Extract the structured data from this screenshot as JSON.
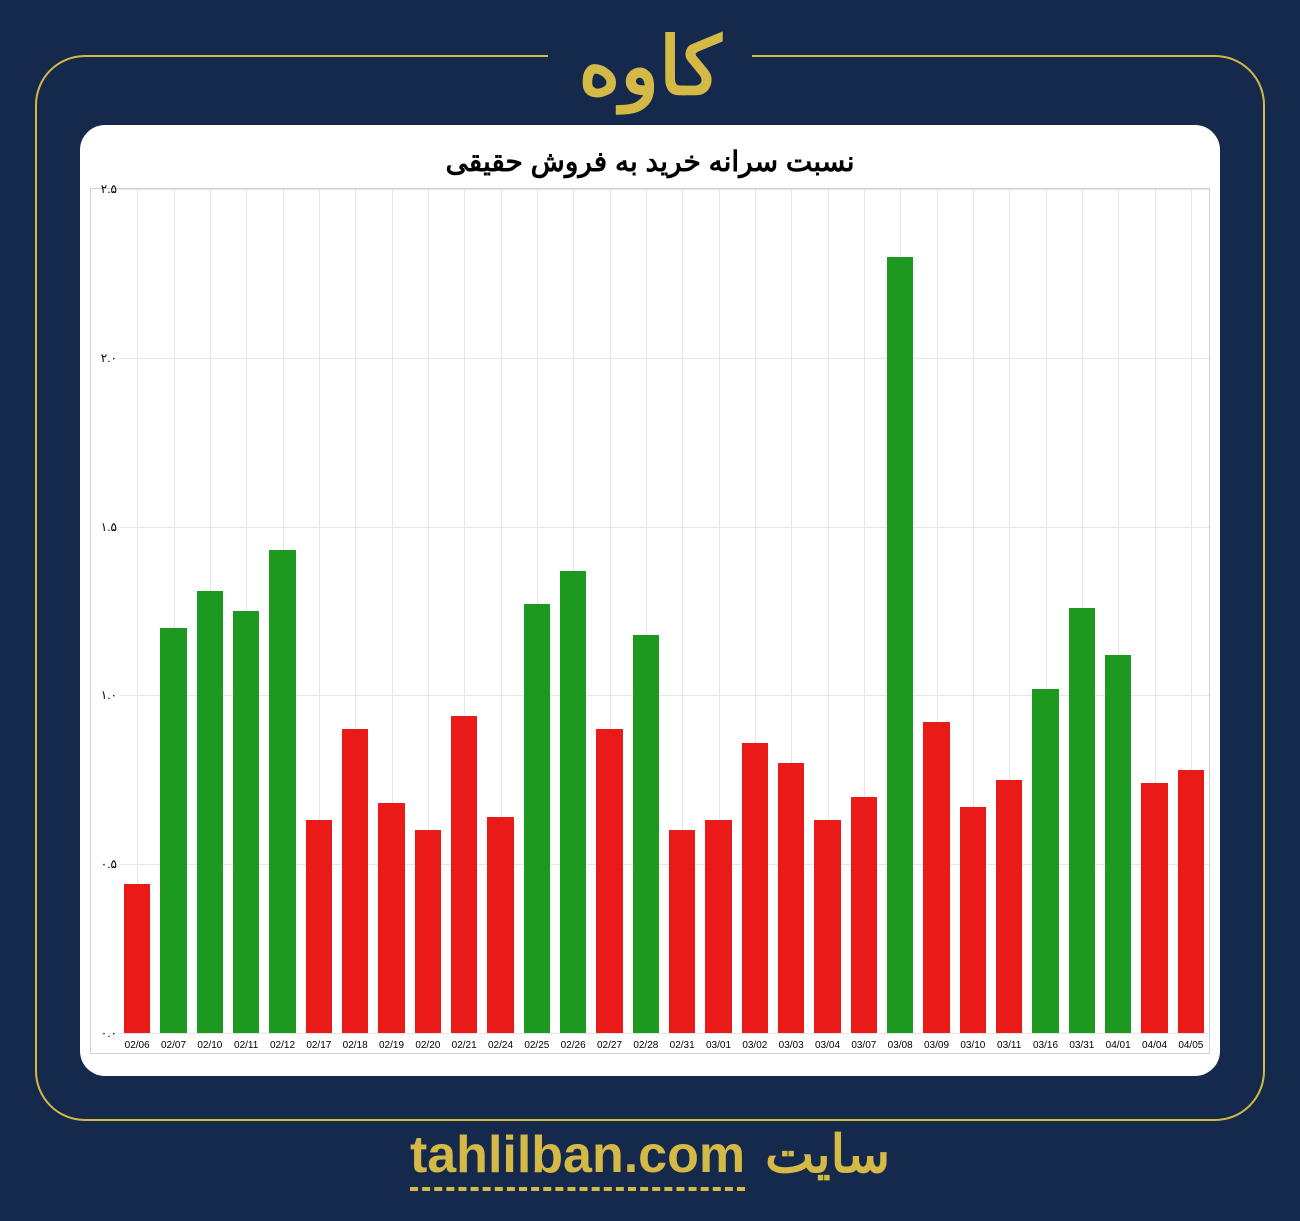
{
  "header": {
    "title": "کاوه"
  },
  "footer": {
    "url": "tahlilban.com",
    "word": "سایت"
  },
  "chart": {
    "type": "bar",
    "title": "نسبت سرانه خرید به فروش حقیقی",
    "title_fontsize": 28,
    "title_color": "#000000",
    "background_color": "#ffffff",
    "panel_radius": 25,
    "grid_color": "#e5e5e5",
    "border_color": "#d0d0d0",
    "ylim": [
      0.0,
      2.5
    ],
    "ytick_step": 0.5,
    "ytick_labels": [
      "۰.۰",
      "۰.۵",
      "۱.۰",
      "۱.۵",
      "۲.۰",
      "۲.۵"
    ],
    "label_fontsize": 12,
    "xlabel_fontsize": 10,
    "bar_width": 0.72,
    "categories": [
      "02/06",
      "02/07",
      "02/10",
      "02/11",
      "02/12",
      "02/17",
      "02/18",
      "02/19",
      "02/20",
      "02/21",
      "02/24",
      "02/25",
      "02/26",
      "02/27",
      "02/28",
      "02/31",
      "03/01",
      "03/02",
      "03/03",
      "03/04",
      "03/07",
      "03/08",
      "03/09",
      "03/10",
      "03/11",
      "03/16",
      "03/31",
      "04/01",
      "04/04",
      "04/05"
    ],
    "values": [
      0.44,
      1.2,
      1.31,
      1.25,
      1.43,
      0.63,
      0.9,
      0.68,
      0.6,
      0.94,
      0.64,
      1.27,
      1.37,
      0.9,
      1.18,
      0.6,
      0.63,
      0.86,
      0.8,
      0.63,
      0.7,
      2.3,
      0.92,
      0.67,
      0.75,
      1.02,
      1.26,
      1.12,
      0.74,
      0.78
    ],
    "colors": {
      "positive": "#1e9920",
      "negative": "#ea1a18"
    },
    "bar_colors": [
      "#ea1a18",
      "#1e9920",
      "#1e9920",
      "#1e9920",
      "#1e9920",
      "#ea1a18",
      "#ea1a18",
      "#ea1a18",
      "#ea1a18",
      "#ea1a18",
      "#ea1a18",
      "#1e9920",
      "#1e9920",
      "#ea1a18",
      "#1e9920",
      "#ea1a18",
      "#ea1a18",
      "#ea1a18",
      "#ea1a18",
      "#ea1a18",
      "#ea1a18",
      "#1e9920",
      "#ea1a18",
      "#ea1a18",
      "#ea1a18",
      "#1e9920",
      "#1e9920",
      "#1e9920",
      "#ea1a18",
      "#ea1a18"
    ]
  },
  "page": {
    "bg": "#14294b",
    "accent": "#d4b947",
    "frame_radius": 50
  }
}
